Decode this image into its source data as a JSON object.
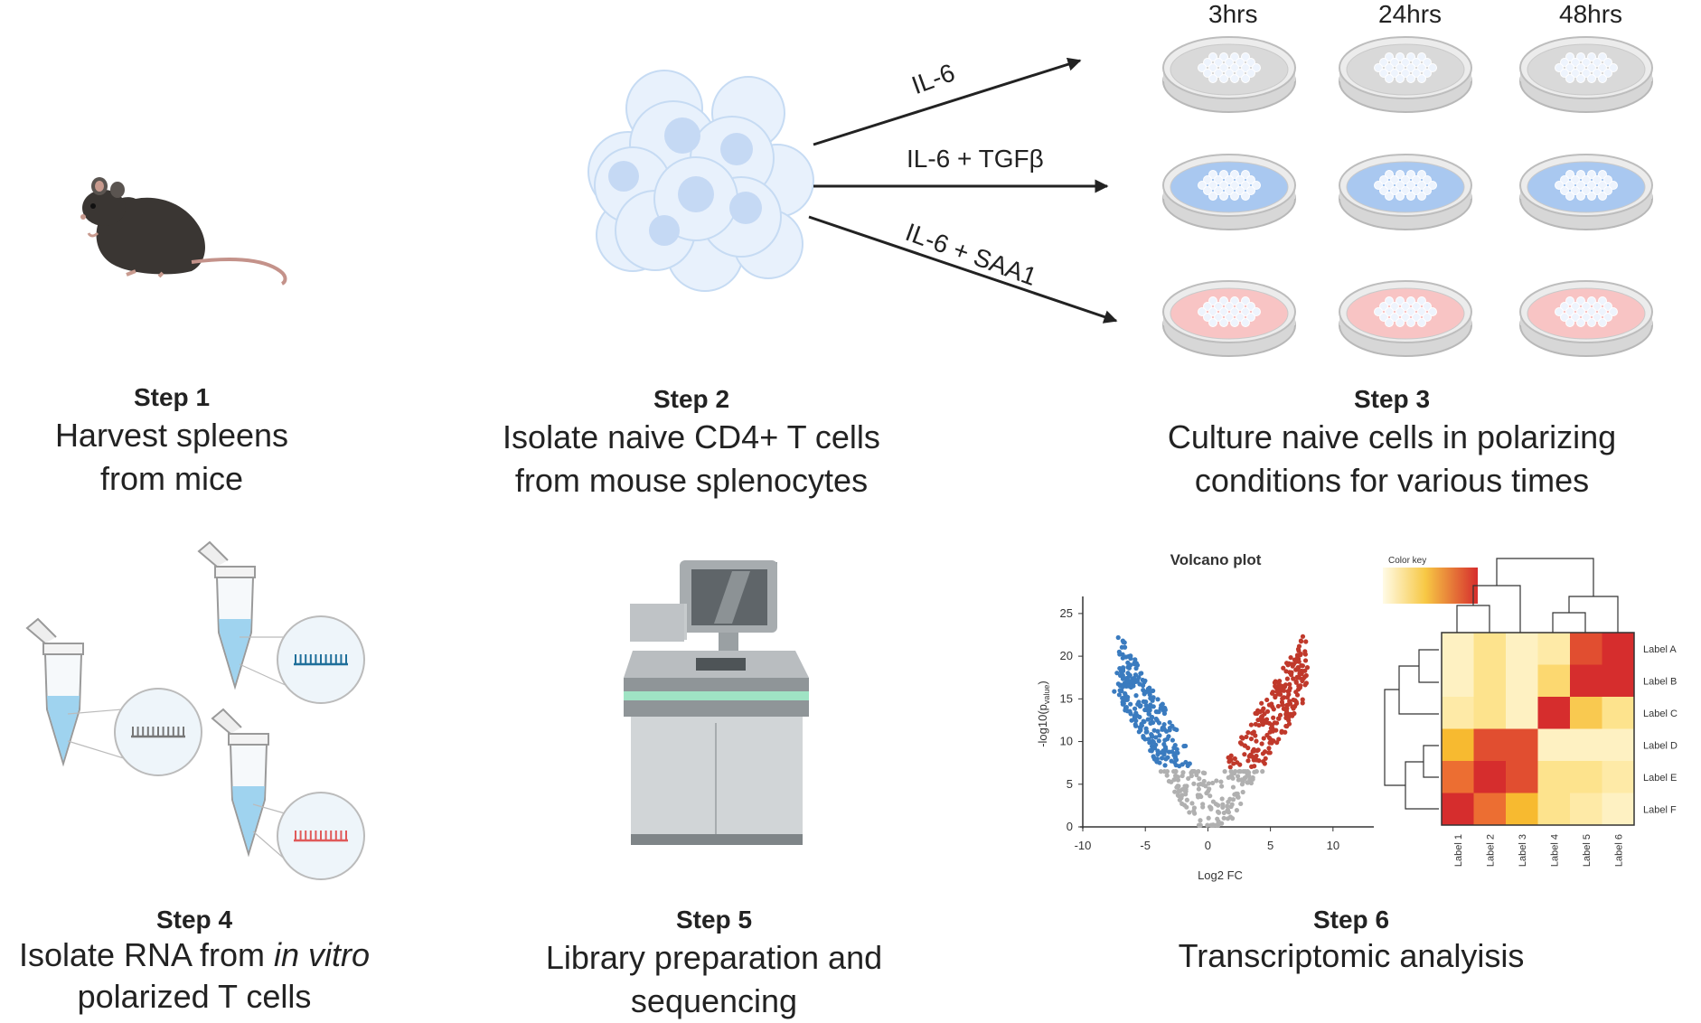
{
  "steps": [
    {
      "step": "Step 1",
      "line1": "Harvest spleens",
      "line2": "from mice"
    },
    {
      "step": "Step 2",
      "line1": "Isolate naive CD4+ T cells",
      "line2": "from mouse splenocytes"
    },
    {
      "step": "Step 3",
      "line1": "Culture naive cells in polarizing",
      "line2": "conditions for various times"
    },
    {
      "step": "Step 4",
      "line1_pre": "Isolate RNA from ",
      "line1_em": "in vitro",
      "line2": "polarized T cells"
    },
    {
      "step": "Step 5",
      "line1": "Library preparation and",
      "line2": "sequencing"
    },
    {
      "step": "Step 6",
      "line1": "Transcriptomic analyisis"
    }
  ],
  "timepoints": [
    "3hrs",
    "24hrs",
    "48hrs"
  ],
  "conditions": [
    {
      "label": "IL-6",
      "color": "#d9d9d9"
    },
    {
      "label": "IL-6 + TGFβ",
      "color": "#a9c8f0"
    },
    {
      "label": "IL-6 + SAA1",
      "color": "#f8c4c4"
    }
  ],
  "colors": {
    "up": "#c0392b",
    "down": "#3a7bbf",
    "ns": "#b0b0b0",
    "blue_strand": "#1f6f9a",
    "red_strand": "#e05a5a",
    "gray_strand": "#777777"
  },
  "volcano": {
    "title": "Volcano plot",
    "xlabel": "Log2 FC",
    "ylabel": "-log10(p",
    "ylabel_sub": "value",
    "ylabel_end": ")",
    "xticks": [
      -10,
      -5,
      0,
      5,
      10
    ],
    "yticks": [
      0,
      5,
      10,
      15,
      20,
      25
    ],
    "xlim": [
      -10,
      14
    ],
    "ylim": [
      0,
      27
    ]
  },
  "heatmap": {
    "color_key": "Color key",
    "row_labels": [
      "Label A",
      "Label B",
      "Label C",
      "Label D",
      "Label E",
      "Label F"
    ],
    "col_labels": [
      "Label 1",
      "Label 2",
      "Label 3",
      "Label 4",
      "Label 5",
      "Label 6"
    ],
    "values": [
      [
        0.1,
        0.3,
        0.1,
        0.2,
        0.9,
        1.0
      ],
      [
        0.1,
        0.3,
        0.1,
        0.4,
        1.0,
        1.0
      ],
      [
        0.2,
        0.3,
        0.1,
        1.0,
        0.5,
        0.3
      ],
      [
        0.6,
        0.9,
        0.9,
        0.1,
        0.1,
        0.1
      ],
      [
        0.8,
        1.0,
        0.9,
        0.3,
        0.3,
        0.2
      ],
      [
        1.0,
        0.8,
        0.6,
        0.3,
        0.2,
        0.1
      ]
    ]
  }
}
